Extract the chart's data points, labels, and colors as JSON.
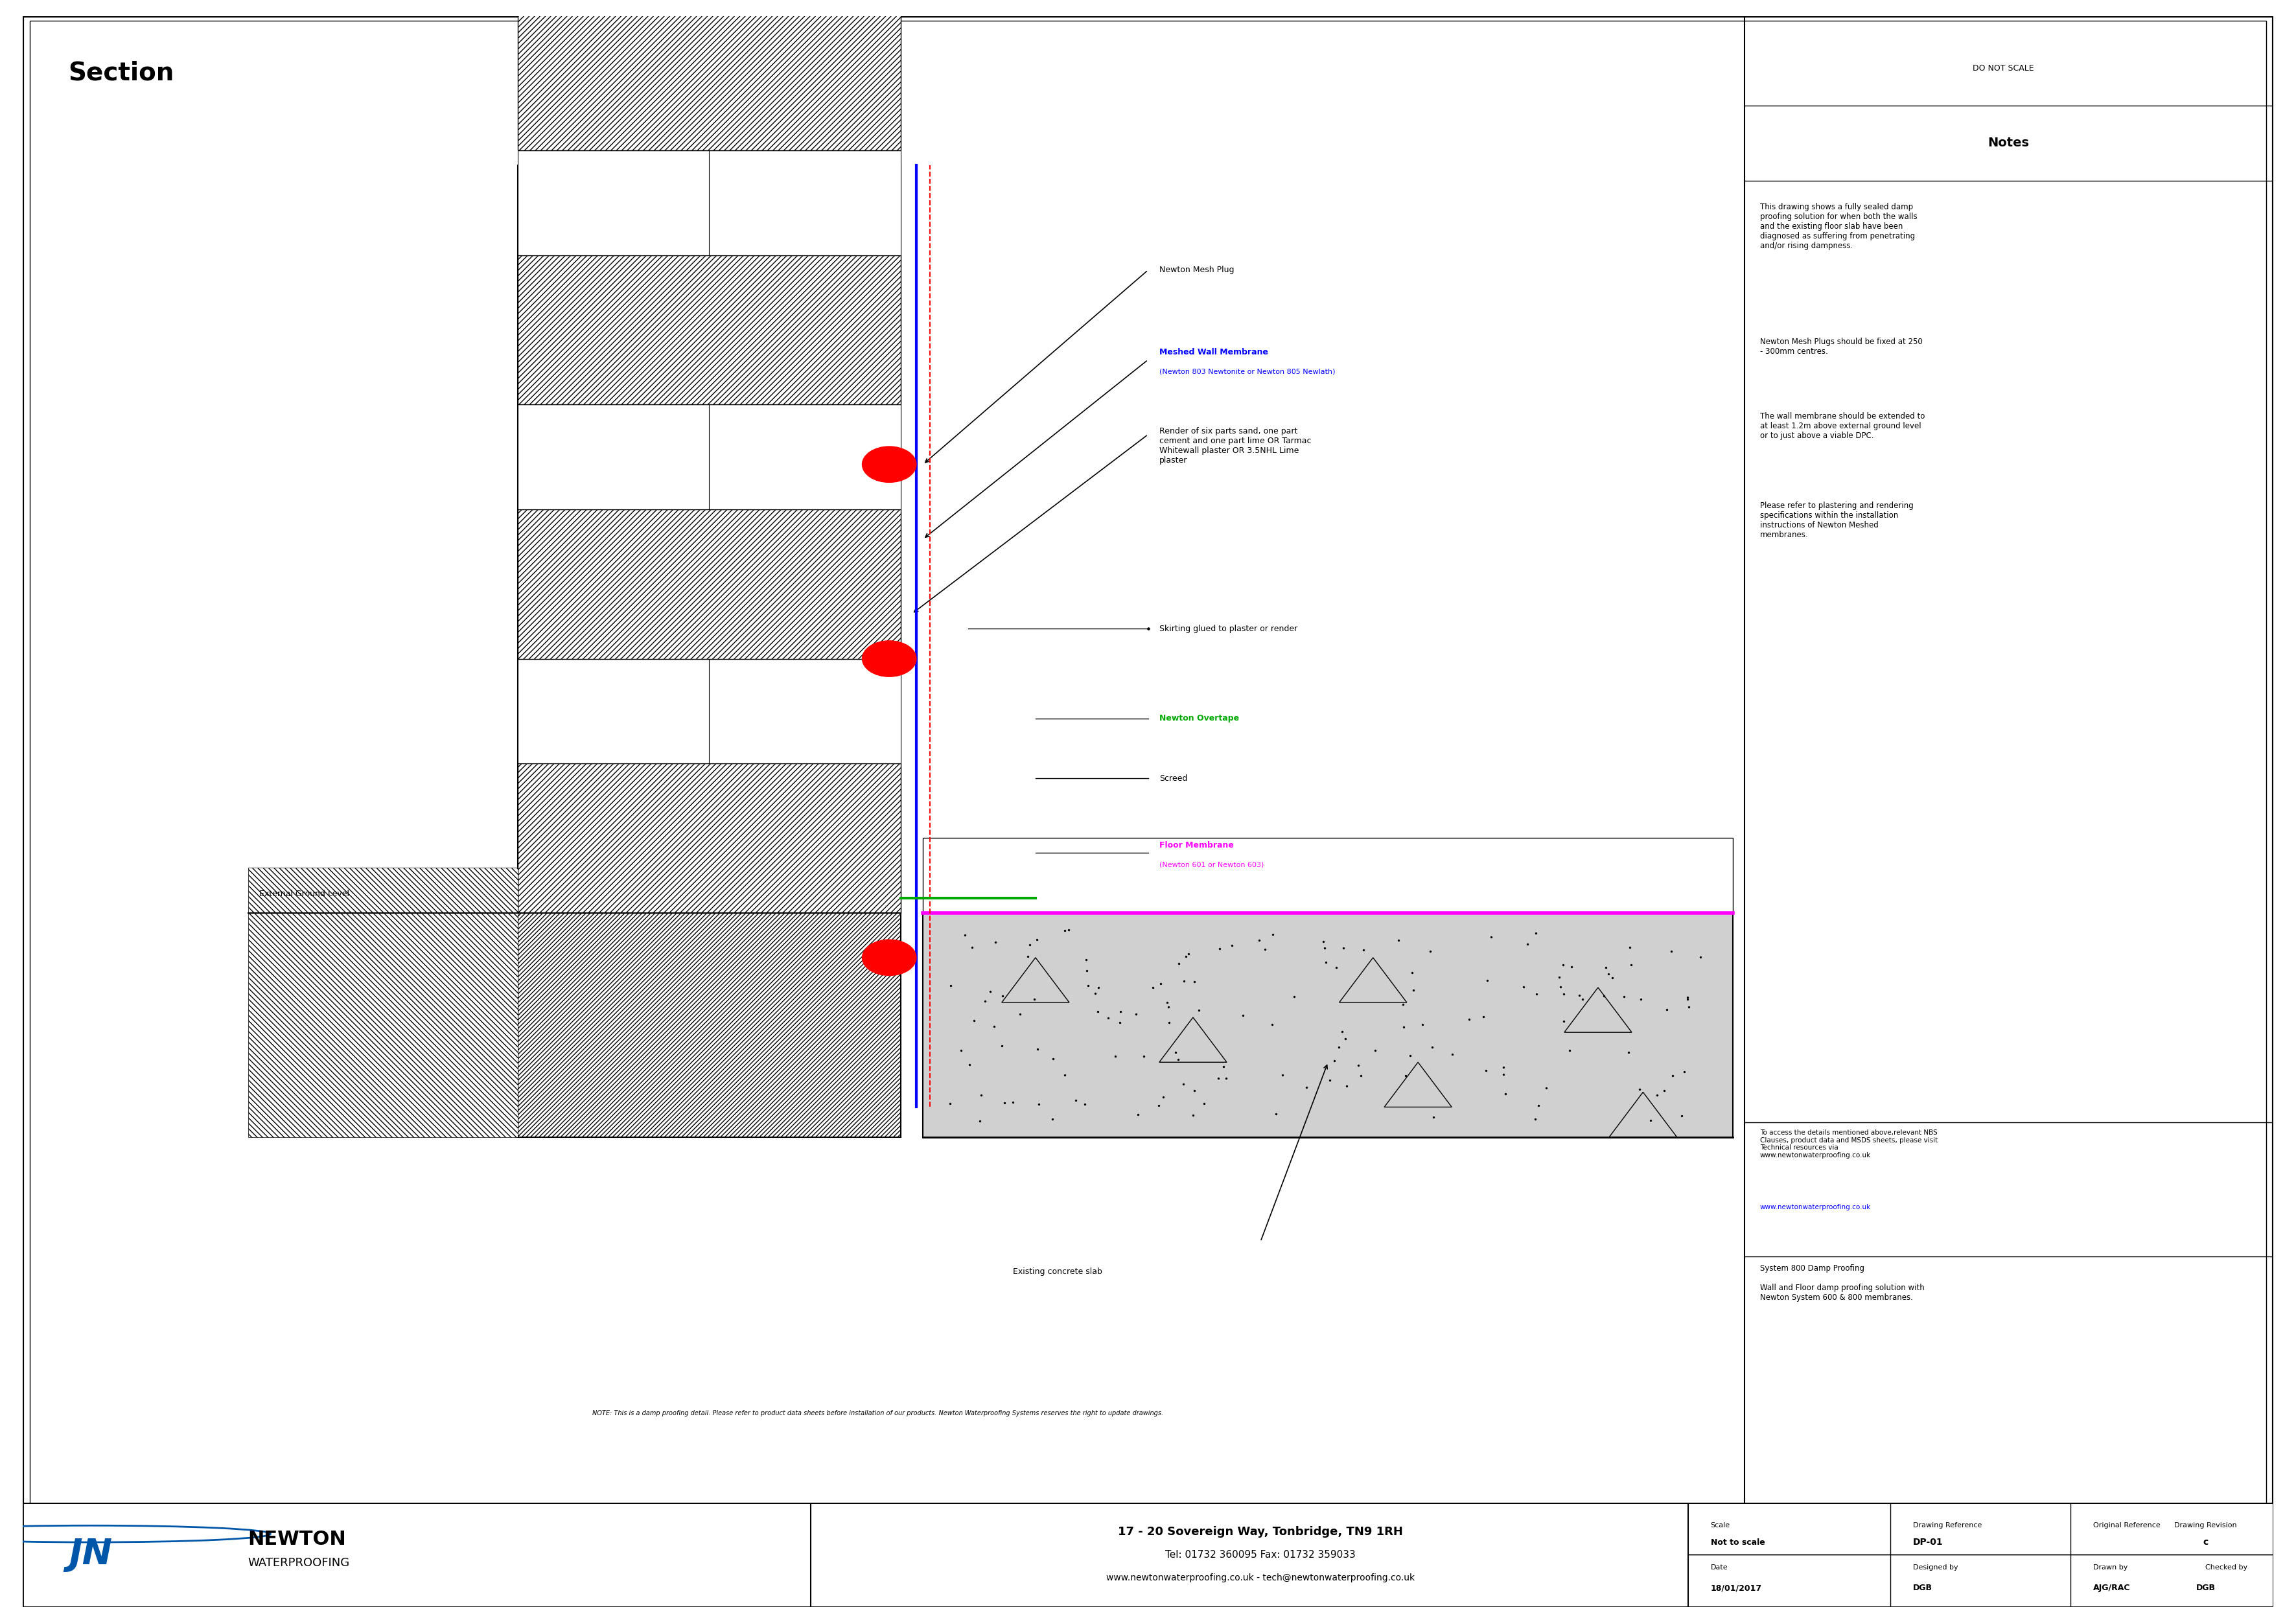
{
  "title": "Section",
  "do_not_scale": "DO NOT SCALE",
  "notes_title": "Notes",
  "notes_text1": "This drawing shows a fully sealed damp\nproofing solution for when both the walls\nand the existing floor slab have been\ndiagnosed as suffering from penetrating\nand/or rising dampness.",
  "notes_text2": "Newton Mesh Plugs should be fixed at 250\n- 300mm centres.",
  "notes_text3": "The wall membrane should be extended to\nat least 1.2m above external ground level\nor to just above a viable DPC.",
  "notes_text4": "Please refer to plastering and rendering\nspecifications within the installation\ninstructions of Newton Meshed\nmembranes.",
  "notes_text5": "To access the details mentioned above,relevant NBS\nClauses, product data and MSDS sheets, please visit\nTechnical resources via\nwww.newtonwaterproofing.co.uk",
  "notes_text5_url": "www.newtonwaterproofing.co.uk",
  "notes_text6": "System 800 Damp Proofing\n\nWall and Floor damp proofing solution with\nNewton System 600 & 800 membranes.",
  "label_mesh_plug": "Newton Mesh Plug",
  "label_wall_membrane": "Meshed Wall Membrane",
  "label_wall_membrane_sub": "(Newton 803 Newtonite or Newton 805 Newlath)",
  "label_render": "Render of six parts sand, one part\ncement and one part lime OR Tarmac\nWhitewall plaster OR 3.5NHL Lime\nplaster",
  "label_skirting": "Skirting glued to plaster or render",
  "label_overtape": "Newton Overtape",
  "label_screed": "Screed",
  "label_floor_membrane": "Floor Membrane",
  "label_floor_membrane_sub": "(Newton 601 or Newton 603)",
  "label_external": "External Ground Level",
  "label_concrete": "Existing concrete slab",
  "note_bottom": "NOTE: This is a damp proofing detail. Please refer to product data sheets before installation of our products. Newton Waterproofing Systems reserves the right to update drawings.",
  "company_address": "17 - 20 Sovereign Way, Tonbridge, TN9 1RH",
  "company_tel": "Tel: 01732 360095 Fax: 01732 359033",
  "company_web": "www.newtonwaterproofing.co.uk - tech@newtonwaterproofing.co.uk",
  "scale_label": "Scale",
  "scale_value": "Not to scale",
  "drawing_ref_label": "Drawing Reference",
  "drawing_ref_value": "DP-01",
  "orig_ref_label": "Original Reference",
  "orig_ref_value": "",
  "drawing_rev_label": "Drawing Revision",
  "drawing_rev_value": "c",
  "date_label": "Date",
  "date_value": "18/01/2017",
  "designed_label": "Designed by",
  "designed_value": "DGB",
  "drawn_label": "Drawn by",
  "drawn_value": "AJG/RAC",
  "checked_label": "Checked by",
  "checked_value": "DGB",
  "color_blue": "#0000FF",
  "color_red": "#FF0000",
  "color_green": "#00AA00",
  "color_magenta": "#FF00FF",
  "color_black": "#000000",
  "color_white": "#FFFFFF",
  "color_hatch": "#000000",
  "color_gray_light": "#DDDDDD",
  "color_concrete": "#C8C8C8",
  "color_company_blue": "#0056A8"
}
